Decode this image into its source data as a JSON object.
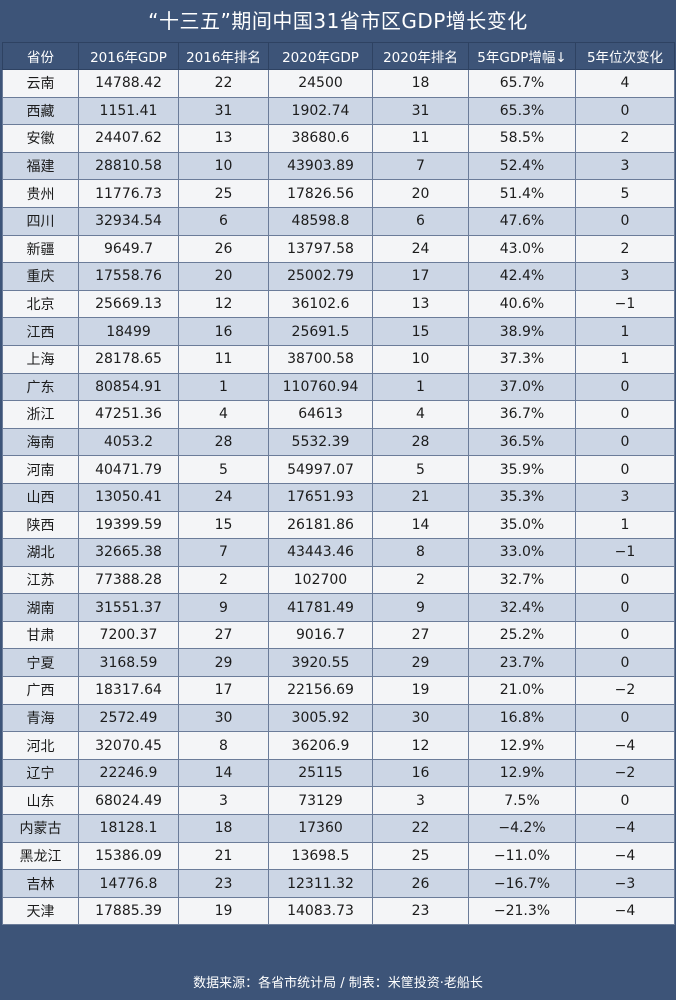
{
  "title": "“十三五”期间中国31省市区GDP增长变化",
  "headers": [
    "省份",
    "2016年GDP",
    "2016年排名",
    "2020年GDP",
    "2020年排名",
    "5年GDP增幅↓",
    "5年位次变化"
  ],
  "rows": [
    [
      "云南",
      "14788.42",
      "22",
      "24500",
      "18",
      "65.7%",
      "4"
    ],
    [
      "西藏",
      "1151.41",
      "31",
      "1902.74",
      "31",
      "65.3%",
      "0"
    ],
    [
      "安徽",
      "24407.62",
      "13",
      "38680.6",
      "11",
      "58.5%",
      "2"
    ],
    [
      "福建",
      "28810.58",
      "10",
      "43903.89",
      "7",
      "52.4%",
      "3"
    ],
    [
      "贵州",
      "11776.73",
      "25",
      "17826.56",
      "20",
      "51.4%",
      "5"
    ],
    [
      "四川",
      "32934.54",
      "6",
      "48598.8",
      "6",
      "47.6%",
      "0"
    ],
    [
      "新疆",
      "9649.7",
      "26",
      "13797.58",
      "24",
      "43.0%",
      "2"
    ],
    [
      "重庆",
      "17558.76",
      "20",
      "25002.79",
      "17",
      "42.4%",
      "3"
    ],
    [
      "北京",
      "25669.13",
      "12",
      "36102.6",
      "13",
      "40.6%",
      "−1"
    ],
    [
      "江西",
      "18499",
      "16",
      "25691.5",
      "15",
      "38.9%",
      "1"
    ],
    [
      "上海",
      "28178.65",
      "11",
      "38700.58",
      "10",
      "37.3%",
      "1"
    ],
    [
      "广东",
      "80854.91",
      "1",
      "110760.94",
      "1",
      "37.0%",
      "0"
    ],
    [
      "浙江",
      "47251.36",
      "4",
      "64613",
      "4",
      "36.7%",
      "0"
    ],
    [
      "海南",
      "4053.2",
      "28",
      "5532.39",
      "28",
      "36.5%",
      "0"
    ],
    [
      "河南",
      "40471.79",
      "5",
      "54997.07",
      "5",
      "35.9%",
      "0"
    ],
    [
      "山西",
      "13050.41",
      "24",
      "17651.93",
      "21",
      "35.3%",
      "3"
    ],
    [
      "陕西",
      "19399.59",
      "15",
      "26181.86",
      "14",
      "35.0%",
      "1"
    ],
    [
      "湖北",
      "32665.38",
      "7",
      "43443.46",
      "8",
      "33.0%",
      "−1"
    ],
    [
      "江苏",
      "77388.28",
      "2",
      "102700",
      "2",
      "32.7%",
      "0"
    ],
    [
      "湖南",
      "31551.37",
      "9",
      "41781.49",
      "9",
      "32.4%",
      "0"
    ],
    [
      "甘肃",
      "7200.37",
      "27",
      "9016.7",
      "27",
      "25.2%",
      "0"
    ],
    [
      "宁夏",
      "3168.59",
      "29",
      "3920.55",
      "29",
      "23.7%",
      "0"
    ],
    [
      "广西",
      "18317.64",
      "17",
      "22156.69",
      "19",
      "21.0%",
      "−2"
    ],
    [
      "青海",
      "2572.49",
      "30",
      "3005.92",
      "30",
      "16.8%",
      "0"
    ],
    [
      "河北",
      "32070.45",
      "8",
      "36206.9",
      "12",
      "12.9%",
      "−4"
    ],
    [
      "辽宁",
      "22246.9",
      "14",
      "25115",
      "16",
      "12.9%",
      "−2"
    ],
    [
      "山东",
      "68024.49",
      "3",
      "73129",
      "3",
      "7.5%",
      "0"
    ],
    [
      "内蒙古",
      "18128.1",
      "18",
      "17360",
      "22",
      "−4.2%",
      "−4"
    ],
    [
      "黑龙江",
      "15386.09",
      "21",
      "13698.5",
      "25",
      "−11.0%",
      "−4"
    ],
    [
      "吉林",
      "14776.8",
      "23",
      "12311.32",
      "26",
      "−16.7%",
      "−3"
    ],
    [
      "天津",
      "17885.39",
      "19",
      "14083.73",
      "23",
      "−21.3%",
      "−4"
    ]
  ],
  "footer": "数据来源：各省市统计局 / 制表：米筐投资·老船长"
}
